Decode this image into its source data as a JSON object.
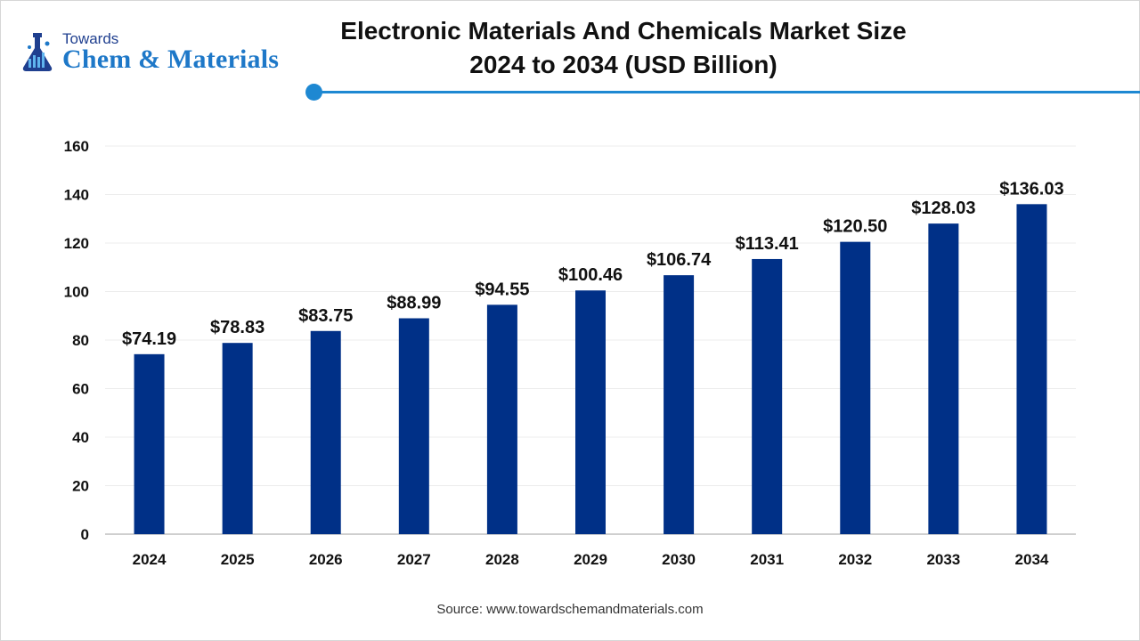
{
  "brand": {
    "line1": "Towards",
    "line2": "Chem & Materials",
    "accent": "#1e78c8",
    "dark": "#1f3f8f"
  },
  "header": {
    "title_line1": "Electronic Materials And Chemicals Market Size",
    "title_line2": "2024 to 2034 (USD Billion)"
  },
  "footer": {
    "source": "Source: www.towardschemandmaterials.com"
  },
  "chart_data": {
    "type": "bar",
    "title": "Electronic Materials And Chemicals Market Size 2024 to 2034 (USD Billion)",
    "categories": [
      "2024",
      "2025",
      "2026",
      "2027",
      "2028",
      "2029",
      "2030",
      "2031",
      "2032",
      "2033",
      "2034"
    ],
    "series": [
      {
        "values": [
          74.19,
          78.83,
          83.75,
          88.99,
          94.55,
          100.46,
          106.74,
          113.41,
          120.5,
          128.03,
          136.03
        ],
        "labels": [
          "$74.19",
          "$78.83",
          "$83.75",
          "$88.99",
          "$94.55",
          "$100.46",
          "$106.74",
          "$113.41",
          "$120.50",
          "$128.03",
          "$136.03"
        ],
        "color": "#003087"
      }
    ],
    "ylim": [
      0,
      160
    ],
    "yticks": [
      "0",
      "20",
      "40",
      "60",
      "80",
      "100",
      "120",
      "140",
      "160"
    ],
    "xlabel": "",
    "ylabel": "",
    "grid": true,
    "legend": "none"
  }
}
